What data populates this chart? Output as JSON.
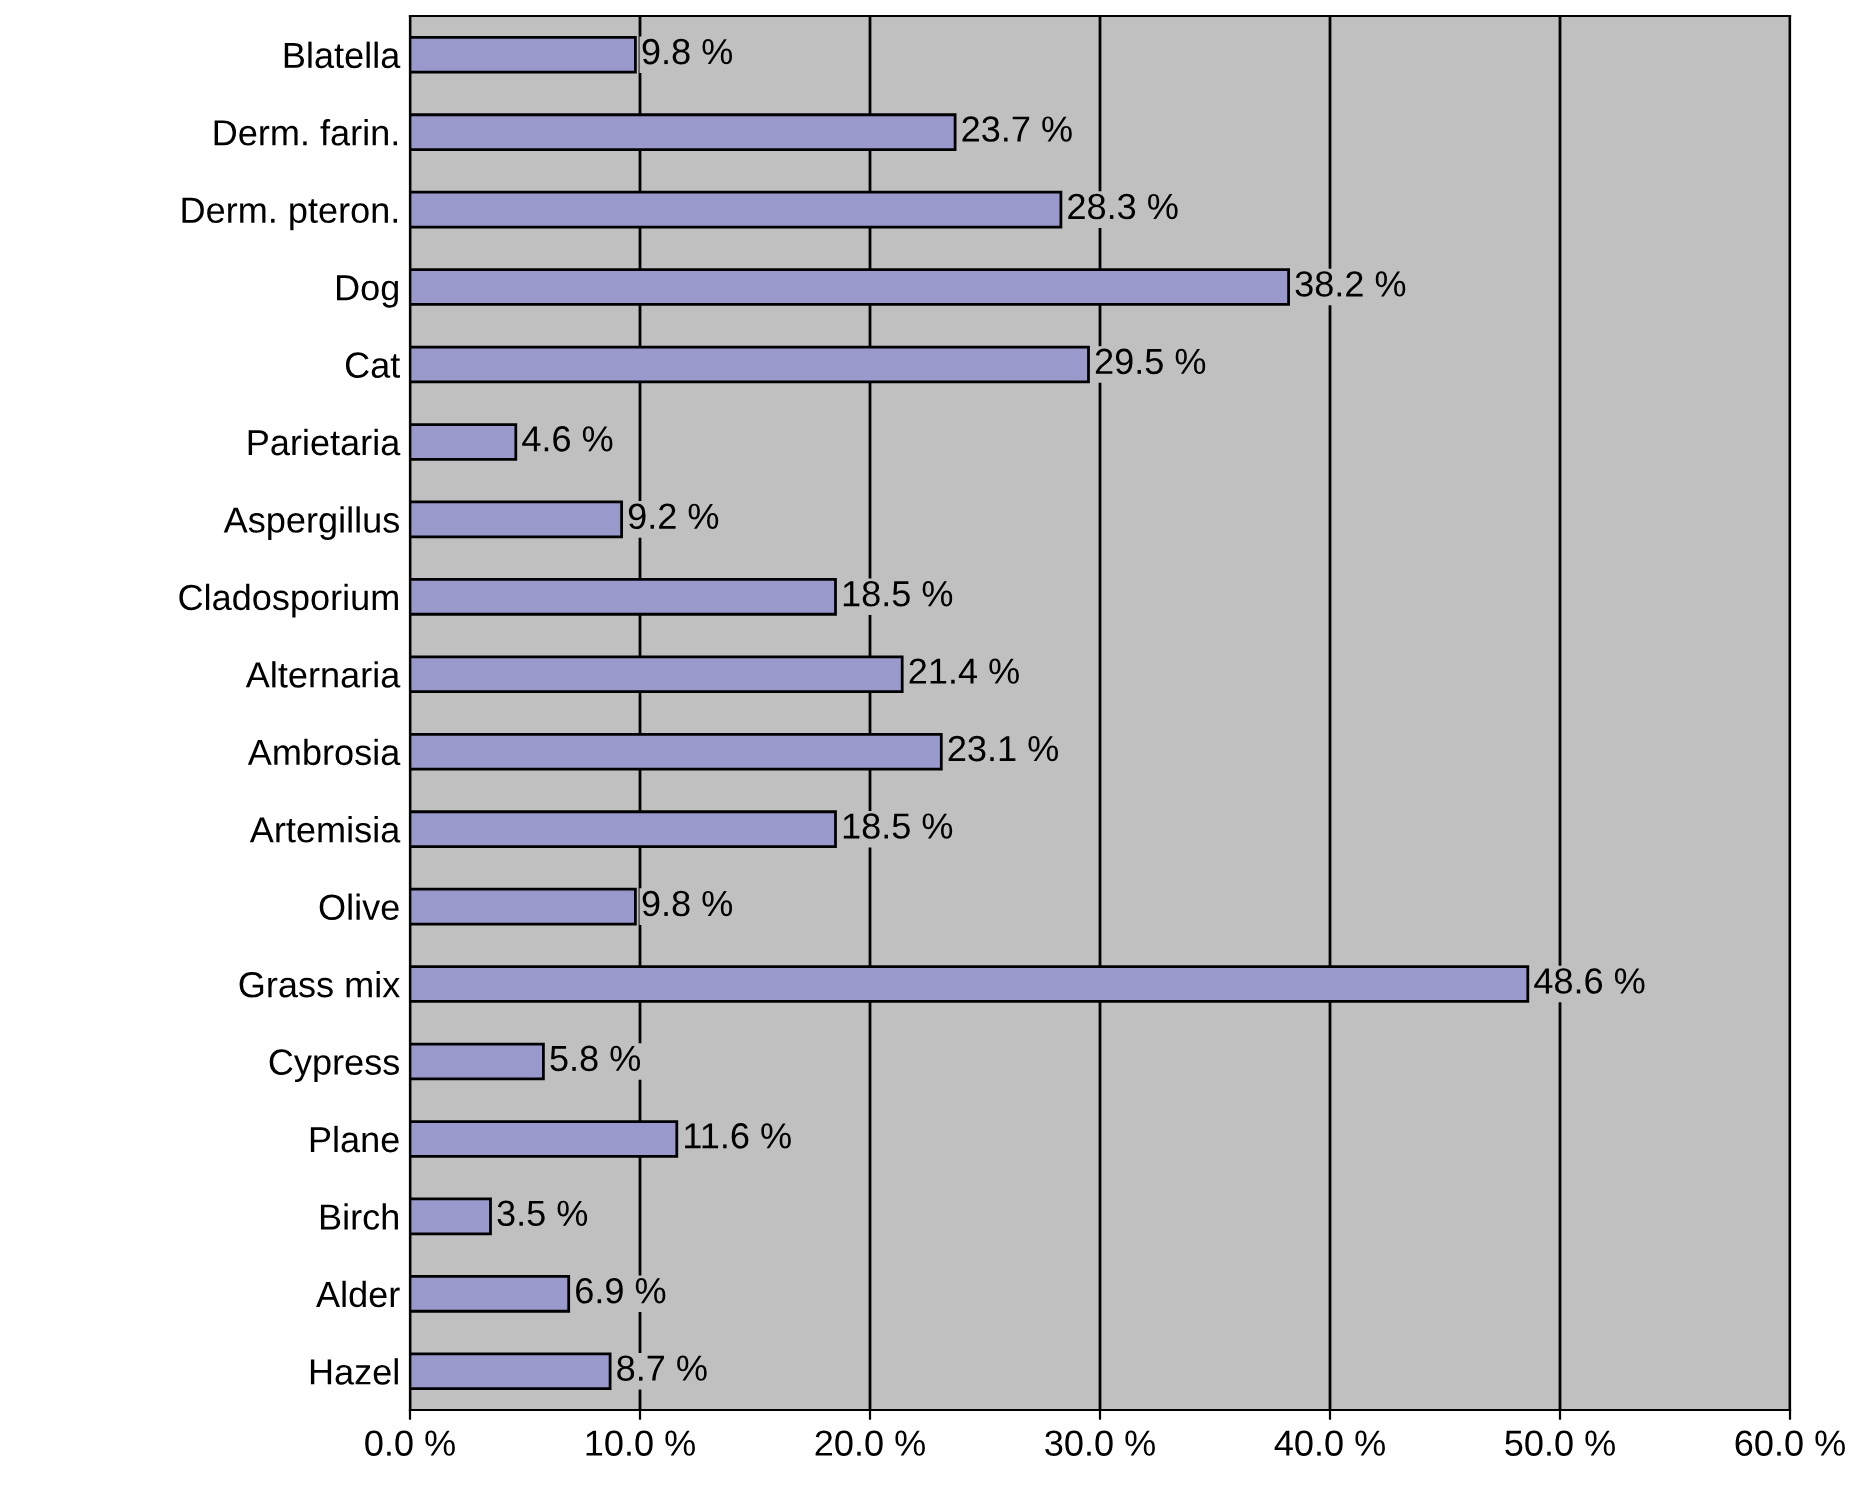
{
  "chart_data": {
    "type": "bar",
    "orientation": "horizontal",
    "categories": [
      "Blatella",
      "Derm. farin.",
      "Derm. pteron.",
      "Dog",
      "Cat",
      "Parietaria",
      "Aspergillus",
      "Cladosporium",
      "Alternaria",
      "Ambrosia",
      "Artemisia",
      "Olive",
      "Grass mix",
      "Cypress",
      "Plane",
      "Birch",
      "Alder",
      "Hazel"
    ],
    "values": [
      9.8,
      23.7,
      28.3,
      38.2,
      29.5,
      4.6,
      9.2,
      18.5,
      21.4,
      23.1,
      18.5,
      9.8,
      48.6,
      5.8,
      11.6,
      3.5,
      6.9,
      8.7
    ],
    "value_labels": [
      "9.8 %",
      "23.7 %",
      "28.3 %",
      "38.2 %",
      "29.5 %",
      "4.6 %",
      "9.2 %",
      "18.5 %",
      "21.4 %",
      "23.1 %",
      "18.5 %",
      "9.8 %",
      "48.6 %",
      "5.8 %",
      "11.6 %",
      "3.5 %",
      "6.9 %",
      "8.7 %"
    ],
    "color": "#9999cc",
    "xlim": [
      0,
      60
    ],
    "xticks": [
      {
        "value": 0,
        "label": "0.0 %"
      },
      {
        "value": 10,
        "label": "10.0 %"
      },
      {
        "value": 20,
        "label": "20.0 %"
      },
      {
        "value": 30,
        "label": "30.0 %"
      },
      {
        "value": 40,
        "label": "40.0 %"
      },
      {
        "value": 50,
        "label": "50.0 %"
      },
      {
        "value": 60,
        "label": "60.0 %"
      }
    ],
    "grid": "x"
  }
}
